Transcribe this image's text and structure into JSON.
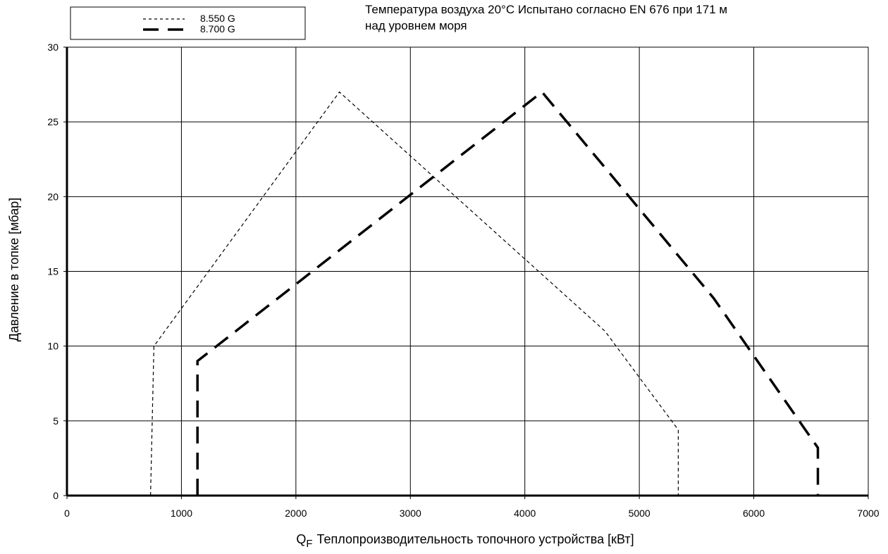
{
  "note": {
    "line1": "Температура воздуха 20°C Испытано согласно EN 676 при 171 м",
    "line2": "над уровнем моря"
  },
  "chart_data": {
    "type": "line",
    "xlabel_prefix": "Q",
    "xlabel_subscript": "F",
    "xlabel": "Теплопроизводительность топочного устройства [кВт]",
    "ylabel": "Давление в топке [мбар]",
    "xlim": [
      0,
      7000
    ],
    "ylim": [
      0,
      30
    ],
    "xticks": [
      0,
      1000,
      2000,
      3000,
      4000,
      5000,
      6000,
      7000
    ],
    "yticks": [
      0,
      5,
      10,
      15,
      20,
      25,
      30
    ],
    "grid": true,
    "legend_position": "top-left",
    "series": [
      {
        "name": "8.550 G",
        "style": "short-dash",
        "x": [
          730,
          760,
          2380,
          4700,
          5340,
          5340
        ],
        "y": [
          0,
          10,
          27,
          11,
          4.4,
          0
        ]
      },
      {
        "name": "8.700 G",
        "style": "long-dash-bold",
        "x": [
          1140,
          1140,
          4150,
          5650,
          6560,
          6560
        ],
        "y": [
          0,
          9,
          27,
          13.2,
          3.2,
          0
        ]
      }
    ]
  }
}
